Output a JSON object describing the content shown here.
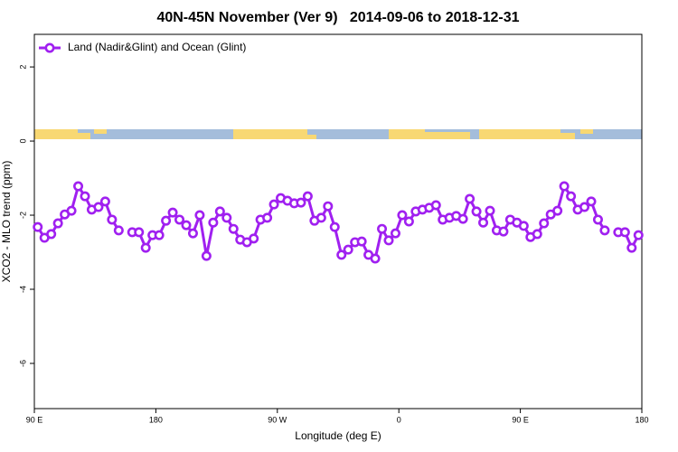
{
  "chart_data": {
    "type": "line",
    "title": "40N-45N November (Ver 9)   2014-09-06 to 2018-12-31",
    "x_label": "Longitude (deg E)",
    "y_label": "XCO2 - MLO trend (ppm)",
    "xlim": [
      90,
      540
    ],
    "ylim": [
      -7.22,
      2.88
    ],
    "xticks": [
      {
        "value": 90,
        "label": "90 E"
      },
      {
        "value": 180,
        "label": "180"
      },
      {
        "value": 270,
        "label": "90 W"
      },
      {
        "value": 360,
        "label": "0"
      },
      {
        "value": 450,
        "label": "90 E"
      },
      {
        "value": 540,
        "label": "180"
      }
    ],
    "yticks": [
      2,
      0,
      -2,
      -4,
      -6
    ],
    "legend": "top-left",
    "x": [
      92.5,
      97.5,
      102.5,
      107.5,
      112.5,
      117.5,
      122.5,
      127.5,
      132.5,
      137.5,
      142.5,
      147.5,
      152.5,
      157.5,
      162.5,
      167.5,
      172.5,
      177.5,
      182.5,
      187.5,
      192.5,
      197.5,
      202.5,
      207.5,
      212.5,
      217.5,
      222.5,
      227.5,
      232.5,
      237.5,
      242.5,
      247.5,
      252.5,
      257.5,
      262.5,
      267.5,
      272.5,
      277.5,
      282.5,
      287.5,
      292.5,
      297.5,
      302.5,
      307.5,
      312.5,
      317.5,
      322.5,
      327.5,
      332.5,
      337.5,
      342.5,
      347.5,
      352.5,
      357.5,
      362.5,
      367.5,
      372.5,
      377.5,
      382.5,
      387.5,
      392.5,
      397.5,
      402.5,
      407.5,
      412.5,
      417.5,
      422.5,
      427.5,
      432.5,
      437.5,
      442.5,
      447.5,
      452.5,
      457.5,
      462.5,
      467.5,
      472.5,
      477.5,
      482.5,
      487.5,
      492.5,
      497.5,
      502.5,
      507.5,
      512.5,
      517.5,
      522.5,
      527.5,
      532.5,
      537.5
    ],
    "series": [
      {
        "name": "Land (Nadir&Glint) and Ocean (Glint)",
        "color": "#a020f0",
        "values": [
          -2.32,
          -2.61,
          -2.51,
          -2.22,
          -1.98,
          -1.88,
          -1.22,
          -1.49,
          -1.85,
          -1.78,
          -1.63,
          -2.12,
          -2.41,
          null,
          -2.46,
          -2.46,
          -2.88,
          -2.54,
          -2.54,
          -2.15,
          -1.93,
          -2.12,
          -2.27,
          -2.49,
          -2.0,
          -3.1,
          -2.2,
          -1.9,
          -2.07,
          -2.37,
          -2.66,
          -2.73,
          -2.63,
          -2.12,
          -2.07,
          -1.71,
          -1.54,
          -1.61,
          -1.68,
          -1.66,
          -1.49,
          -2.15,
          -2.07,
          -1.76,
          -2.32,
          -3.07,
          -2.93,
          -2.73,
          -2.71,
          -3.07,
          -3.17,
          -2.37,
          -2.68,
          -2.49,
          -2.0,
          -2.17,
          -1.9,
          -1.85,
          -1.8,
          -1.73,
          -2.12,
          -2.07,
          -2.02,
          -2.1,
          -1.56,
          -1.9,
          -2.2,
          -1.88,
          -2.41,
          -2.44,
          -2.12,
          -2.2,
          -2.29,
          -2.59,
          -2.51,
          -2.22,
          -1.98,
          -1.88,
          -1.22,
          -1.49,
          -1.85,
          -1.78,
          -1.63,
          -2.12,
          -2.41,
          null,
          -2.46,
          -2.46,
          -2.88,
          -2.54
        ]
      }
    ]
  }
}
